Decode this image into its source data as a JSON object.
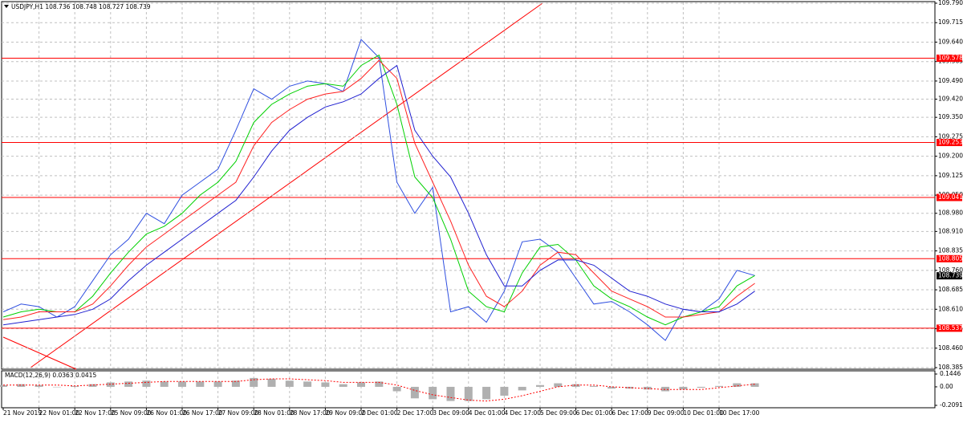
{
  "chart_data": {
    "type": "line",
    "title": "USDJPY,H1  108.736 108.748 108.727 108.739",
    "categories": [
      "21 Nov 2019",
      null,
      "22 Nov 01:00",
      null,
      "22 Nov 17:00",
      null,
      "25 Nov 09:00",
      null,
      "26 Nov 01:00",
      null,
      "26 Nov 17:00",
      null,
      "27 Nov 09:00",
      null,
      "28 Nov 01:00",
      null,
      "28 Nov 17:00",
      null,
      "29 Nov 09:00",
      null,
      "2 Dec 01:00",
      null,
      "2 Dec 17:00",
      null,
      "3 Dec 09:00",
      null,
      "4 Dec 01:00",
      null,
      "4 Dec 17:00",
      null,
      "5 Dec 09:00",
      null,
      "6 Dec 01:00",
      null,
      "6 Dec 17:00",
      null,
      "9 Dec 09:00",
      null,
      "10 Dec 01:00",
      null,
      "10 Dec 17:00",
      null,
      null
    ],
    "series": [
      {
        "color": "#2f4fe0",
        "values": [
          108.6,
          108.63,
          108.62,
          108.58,
          108.62,
          108.72,
          108.82,
          108.88,
          108.98,
          108.94,
          109.05,
          109.1,
          109.15,
          109.3,
          109.46,
          109.42,
          109.47,
          109.49,
          109.48,
          109.45,
          109.65,
          109.58,
          109.1,
          108.98,
          109.08,
          108.6,
          108.62,
          108.56,
          108.68,
          108.87,
          108.88,
          108.83,
          108.73,
          108.63,
          108.64,
          108.6,
          108.55,
          108.49,
          108.61,
          108.6,
          108.65,
          108.76,
          108.74
        ]
      },
      {
        "color": "#00d000",
        "values": [
          108.58,
          108.6,
          108.61,
          108.6,
          108.6,
          108.66,
          108.75,
          108.83,
          108.9,
          108.93,
          108.98,
          109.05,
          109.1,
          109.18,
          109.33,
          109.4,
          109.44,
          109.47,
          109.48,
          109.47,
          109.55,
          109.59,
          109.4,
          109.12,
          109.04,
          108.88,
          108.68,
          108.62,
          108.6,
          108.75,
          108.85,
          108.86,
          108.8,
          108.7,
          108.65,
          108.62,
          108.58,
          108.55,
          108.58,
          108.6,
          108.62,
          108.7,
          108.74
        ]
      },
      {
        "color": "#ff2020",
        "values": [
          108.57,
          108.58,
          108.6,
          108.6,
          108.6,
          108.63,
          108.7,
          108.78,
          108.85,
          108.9,
          108.95,
          109.0,
          109.05,
          109.1,
          109.24,
          109.33,
          109.38,
          109.42,
          109.44,
          109.45,
          109.5,
          109.57,
          109.5,
          109.25,
          109.1,
          108.95,
          108.78,
          108.66,
          108.62,
          108.68,
          108.78,
          108.83,
          108.82,
          108.75,
          108.68,
          108.65,
          108.62,
          108.58,
          108.58,
          108.59,
          108.6,
          108.66,
          108.71
        ]
      },
      {
        "color": "#2020d0",
        "values": [
          108.55,
          108.56,
          108.57,
          108.58,
          108.59,
          108.61,
          108.65,
          108.72,
          108.78,
          108.83,
          108.88,
          108.93,
          108.98,
          109.03,
          109.12,
          109.22,
          109.3,
          109.35,
          109.39,
          109.41,
          109.44,
          109.5,
          109.55,
          109.3,
          109.2,
          109.12,
          108.98,
          108.82,
          108.7,
          108.7,
          108.76,
          108.8,
          108.8,
          108.78,
          108.73,
          108.68,
          108.66,
          108.63,
          108.61,
          108.6,
          108.6,
          108.63,
          108.68
        ]
      }
    ],
    "ylim": [
      108.385,
      109.79
    ],
    "yticks": [
      {
        "value": 109.79,
        "label": "109.790"
      },
      {
        "value": 109.715,
        "label": "109.715"
      },
      {
        "value": 109.64,
        "label": "109.640"
      },
      {
        "value": 109.565,
        "label": "109.565"
      },
      {
        "value": 109.49,
        "label": "109.490"
      },
      {
        "value": 109.42,
        "label": "109.420"
      },
      {
        "value": 109.35,
        "label": "109.350"
      },
      {
        "value": 109.275,
        "label": "109.275"
      },
      {
        "value": 109.2,
        "label": "109.200"
      },
      {
        "value": 109.125,
        "label": "109.125"
      },
      {
        "value": 109.05,
        "label": "109.050"
      },
      {
        "value": 108.98,
        "label": "108.980"
      },
      {
        "value": 108.91,
        "label": "108.910"
      },
      {
        "value": 108.835,
        "label": "108.835"
      },
      {
        "value": 108.76,
        "label": "108.760"
      },
      {
        "value": 108.685,
        "label": "108.685"
      },
      {
        "value": 108.61,
        "label": "108.610"
      },
      {
        "value": 108.535,
        "label": "108.535"
      },
      {
        "value": 108.46,
        "label": "108.460"
      },
      {
        "value": 108.385,
        "label": "108.385"
      }
    ],
    "grid": true,
    "levels": [
      109.578,
      109.253,
      109.041,
      108.805,
      108.537
    ],
    "level_color": "#ff0000",
    "current_price": 108.739,
    "macd": {
      "label": "MACD(12,26,9) 0.0363 0.0415",
      "hist_color": "#b0b0b0",
      "signal_color": "#ff0000",
      "values": [
        0.02,
        0.03,
        0.02,
        0.0,
        0.01,
        0.03,
        0.05,
        0.06,
        0.07,
        0.06,
        0.06,
        0.06,
        0.06,
        0.07,
        0.1,
        0.09,
        0.07,
        0.06,
        0.05,
        0.03,
        0.05,
        0.06,
        -0.05,
        -0.13,
        -0.14,
        -0.16,
        -0.16,
        -0.14,
        -0.1,
        -0.04,
        0.02,
        0.04,
        0.03,
        0.01,
        -0.02,
        -0.02,
        -0.03,
        -0.05,
        -0.03,
        -0.01,
        0.01,
        0.04,
        0.04
      ],
      "signal": [
        0.02,
        0.02,
        0.02,
        0.02,
        0.01,
        0.02,
        0.03,
        0.04,
        0.05,
        0.06,
        0.06,
        0.06,
        0.06,
        0.06,
        0.08,
        0.09,
        0.09,
        0.08,
        0.07,
        0.05,
        0.05,
        0.05,
        0.02,
        -0.04,
        -0.09,
        -0.12,
        -0.15,
        -0.16,
        -0.14,
        -0.1,
        -0.05,
        0.0,
        0.02,
        0.02,
        0.0,
        -0.01,
        -0.02,
        -0.03,
        -0.03,
        -0.03,
        -0.01,
        0.01,
        0.03
      ],
      "ylim": [
        -0.2091,
        0.1446
      ],
      "yticks": [
        0.1446,
        {
          "value": 0,
          "label": "0.00"
        },
        -0.2091
      ]
    }
  }
}
